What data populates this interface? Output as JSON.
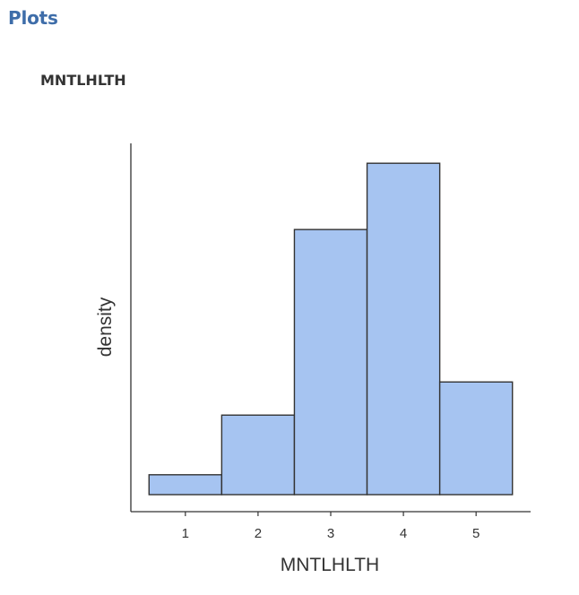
{
  "page": {
    "heading": "Plots"
  },
  "chart_data": {
    "type": "bar",
    "title": "MNTLHLTH",
    "xlabel": "MNTLHLTH",
    "ylabel": "density",
    "categories": [
      "1",
      "2",
      "3",
      "4",
      "5"
    ],
    "x": [
      1,
      2,
      3,
      4,
      5
    ],
    "values": [
      0.03,
      0.12,
      0.4,
      0.5,
      0.17
    ],
    "xlim": [
      0.25,
      5.75
    ],
    "ylim": [
      0,
      0.53
    ],
    "bar_width": 1,
    "bar_fill": "#a6c4f1",
    "bar_stroke": "#333333",
    "show_y_ticks": false,
    "grid": false
  }
}
